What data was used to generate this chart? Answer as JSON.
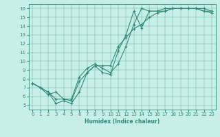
{
  "line1_x": [
    0,
    1,
    2,
    3,
    4,
    5,
    6,
    7,
    8,
    9,
    10,
    11,
    12,
    13,
    14,
    15,
    16,
    17,
    18,
    19,
    20,
    21,
    22,
    23
  ],
  "line1_y": [
    7.5,
    7.0,
    6.5,
    5.2,
    5.5,
    5.2,
    6.5,
    8.7,
    9.5,
    8.7,
    8.5,
    11.2,
    13.0,
    15.7,
    13.8,
    15.7,
    15.7,
    15.7,
    16.0,
    16.0,
    16.0,
    16.0,
    16.0,
    15.7
  ],
  "line2_x": [
    0,
    1,
    2,
    3,
    4,
    5,
    6,
    7,
    8,
    9,
    10,
    11,
    12,
    13,
    14,
    15,
    16,
    17,
    18,
    19,
    20,
    21,
    22,
    23
  ],
  "line2_y": [
    7.5,
    7.0,
    6.2,
    6.5,
    5.7,
    5.7,
    8.2,
    9.2,
    9.7,
    9.2,
    8.7,
    9.7,
    11.7,
    14.2,
    16.0,
    15.7,
    15.7,
    16.0,
    16.0,
    16.0,
    16.0,
    16.0,
    15.7,
    15.7
  ],
  "line3_x": [
    0,
    1,
    2,
    3,
    4,
    5,
    6,
    7,
    8,
    9,
    10,
    11,
    12,
    13,
    14,
    15,
    16,
    17,
    18,
    19,
    20,
    21,
    22,
    23
  ],
  "line3_y": [
    7.5,
    7.0,
    6.5,
    5.7,
    5.7,
    5.5,
    7.7,
    8.7,
    9.5,
    9.5,
    9.5,
    11.7,
    12.7,
    13.7,
    14.2,
    15.0,
    15.5,
    15.7,
    16.0,
    16.0,
    16.0,
    16.0,
    15.7,
    15.5
  ],
  "color": "#2e8b7a",
  "bg_color": "#c8eee8",
  "xlabel": "Humidex (Indice chaleur)",
  "xlim": [
    -0.5,
    23.5
  ],
  "ylim": [
    4.5,
    16.5
  ],
  "yticks": [
    5,
    6,
    7,
    8,
    9,
    10,
    11,
    12,
    13,
    14,
    15,
    16
  ],
  "xticks": [
    0,
    1,
    2,
    3,
    4,
    5,
    6,
    7,
    8,
    9,
    10,
    11,
    12,
    13,
    14,
    15,
    16,
    17,
    18,
    19,
    20,
    21,
    22,
    23
  ],
  "xlabel_fontsize": 5.5,
  "tick_fontsize": 5.0,
  "linewidth": 0.8,
  "markersize": 2.5
}
